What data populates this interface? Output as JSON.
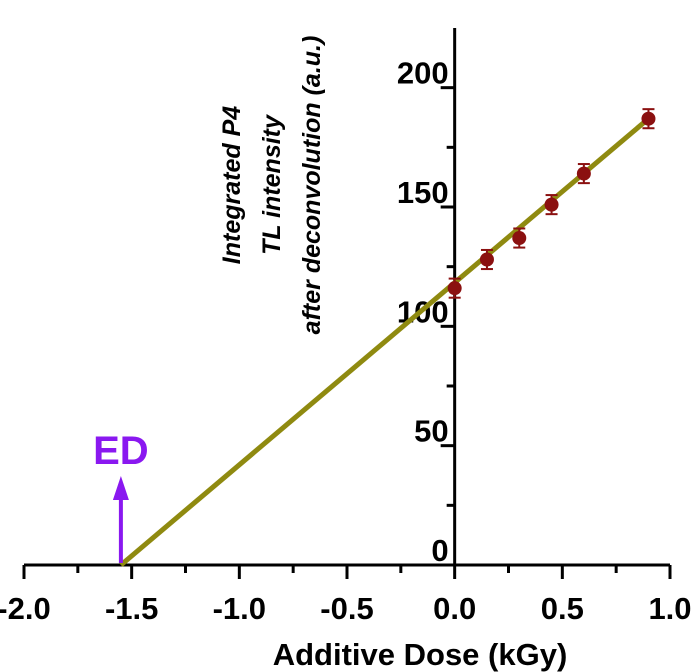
{
  "chart_data": {
    "type": "scatter",
    "xlabel": "Additive Dose (kGy)",
    "ylabel_lines": [
      "Integrated P4",
      "TL intensity",
      "after deconvolution (a.u.)"
    ],
    "xlim": [
      -2.0,
      1.0
    ],
    "ylim": [
      0,
      225
    ],
    "x_ticks": [
      "-2.0",
      "-1.5",
      "-1.0",
      "-0.5",
      "0.0",
      "0.5",
      "1.0"
    ],
    "x_tick_values": [
      -2.0,
      -1.5,
      -1.0,
      -0.5,
      0.0,
      0.5,
      1.0
    ],
    "y_ticks": [
      "0",
      "50",
      "100",
      "150",
      "200"
    ],
    "y_tick_values": [
      0,
      50,
      100,
      150,
      200
    ],
    "grid": false,
    "series": [
      {
        "x": [
          0.0,
          0.15,
          0.3,
          0.45,
          0.6,
          0.9
        ],
        "y": [
          116,
          128,
          137,
          151,
          164,
          187
        ],
        "error": [
          4,
          4,
          4,
          4,
          4,
          4
        ],
        "color": "#8b1010"
      }
    ],
    "fit_line": {
      "x": [
        -1.55,
        0.9
      ],
      "y": [
        0,
        187
      ],
      "color": "#8f8a10"
    },
    "annotation": {
      "text": "ED",
      "x": -1.55,
      "color": "#8a18f0"
    }
  }
}
